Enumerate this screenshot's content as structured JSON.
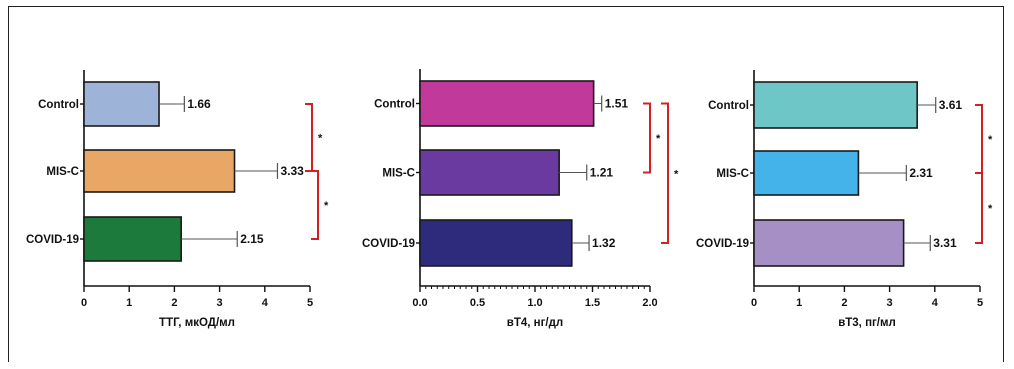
{
  "chart_data": [
    {
      "type": "bar",
      "orientation": "horizontal",
      "categories": [
        "Control",
        "MIS-C",
        "COVID-19"
      ],
      "values": [
        1.66,
        3.33,
        2.15
      ],
      "value_labels": [
        "1.66",
        "3.33",
        "2.15"
      ],
      "error_upper": [
        2.22,
        4.28,
        3.39
      ],
      "colors": [
        "#9db4d8",
        "#e9a766",
        "#1c7a3d"
      ],
      "xlabel": "ТТГ, мкОД/мл",
      "xlim": [
        0,
        5
      ],
      "xticks": [
        "0",
        "1",
        "2",
        "3",
        "4",
        "5"
      ],
      "minor_ticks": false,
      "significance": [
        {
          "pair": [
            "Control",
            "MIS-C"
          ],
          "mark": "*"
        },
        {
          "pair": [
            "MIS-C",
            "COVID-19"
          ],
          "mark": "*"
        }
      ]
    },
    {
      "type": "bar",
      "orientation": "horizontal",
      "categories": [
        "Control",
        "MIS-C",
        "COVID-19"
      ],
      "values": [
        1.51,
        1.21,
        1.32
      ],
      "value_labels": [
        "1.51",
        "1.21",
        "1.32"
      ],
      "error_upper": [
        1.58,
        1.45,
        1.47
      ],
      "colors": [
        "#c0399b",
        "#6b3aa0",
        "#2e2b7c"
      ],
      "xlabel": "вТ4, нг/дл",
      "xlim": [
        0,
        2
      ],
      "xticks": [
        "0.0",
        "0.5",
        "1.0",
        "1.5",
        "2.0"
      ],
      "minor_ticks": true,
      "significance": [
        {
          "pair": [
            "Control",
            "MIS-C"
          ],
          "mark": "*"
        },
        {
          "pair": [
            "Control",
            "COVID-19"
          ],
          "mark": "*"
        }
      ]
    },
    {
      "type": "bar",
      "orientation": "horizontal",
      "categories": [
        "Control",
        "MIS-C",
        "COVID-19"
      ],
      "values": [
        3.61,
        2.31,
        3.31
      ],
      "value_labels": [
        "3.61",
        "2.31",
        "3.31"
      ],
      "error_upper": [
        4.02,
        3.37,
        3.9
      ],
      "colors": [
        "#6ec6c6",
        "#43b3ea",
        "#a68fc4"
      ],
      "xlabel": "вТ3, пг/мл",
      "xlim": [
        0,
        5
      ],
      "xticks": [
        "0",
        "1",
        "2",
        "3",
        "4",
        "5"
      ],
      "minor_ticks": false,
      "significance": [
        {
          "pair": [
            "Control",
            "MIS-C"
          ],
          "mark": "*"
        },
        {
          "pair": [
            "MIS-C",
            "COVID-19"
          ],
          "mark": "*"
        }
      ]
    }
  ],
  "colors": {
    "bracket": "#d42020",
    "axis": "#111111",
    "error_bar": "#555555"
  }
}
